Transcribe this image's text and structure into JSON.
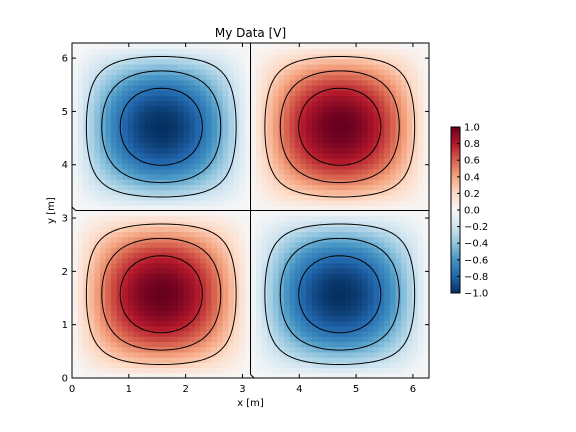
{
  "chart_data": {
    "type": "heatmap",
    "title": "My Data [V]",
    "xlabel": "x [m]",
    "ylabel": "y [m]",
    "function": "sin(x) * sin(y)",
    "xlim": [
      0,
      6.283
    ],
    "ylim": [
      0,
      6.283
    ],
    "resolution": 64,
    "x_ticks": [
      0,
      1,
      2,
      3,
      4,
      5,
      6
    ],
    "y_ticks": [
      0,
      1,
      2,
      3,
      4,
      5,
      6
    ],
    "x_tick_labels": [
      "0",
      "1",
      "2",
      "3",
      "4",
      "5",
      "6"
    ],
    "y_tick_labels": [
      "0",
      "1",
      "2",
      "3",
      "4",
      "5",
      "6"
    ],
    "colormap": "RdBu_r",
    "colormap_stops": [
      "#053061",
      "#2166ac",
      "#4393c3",
      "#92c5de",
      "#d1e5f0",
      "#f7f7f7",
      "#fddbc7",
      "#f4a582",
      "#d6604d",
      "#b2182b",
      "#67001f"
    ],
    "clim": [
      -1,
      1
    ],
    "contour_levels": [
      -0.75,
      -0.5,
      -0.25,
      0,
      0.25,
      0.5,
      0.75
    ],
    "contour_color": "#000000",
    "negative_contour_style": "dashed",
    "colorbar": {
      "ticks": [
        1.0,
        0.8,
        0.6,
        0.4,
        0.2,
        0.0,
        -0.2,
        -0.4,
        -0.6,
        -0.8,
        -1.0
      ],
      "tick_labels": [
        "1.0",
        "0.8",
        "0.6",
        "0.4",
        "0.2",
        "0.0",
        "−0.2",
        "−0.4",
        "−0.6",
        "−0.8",
        "−1.0"
      ]
    }
  }
}
